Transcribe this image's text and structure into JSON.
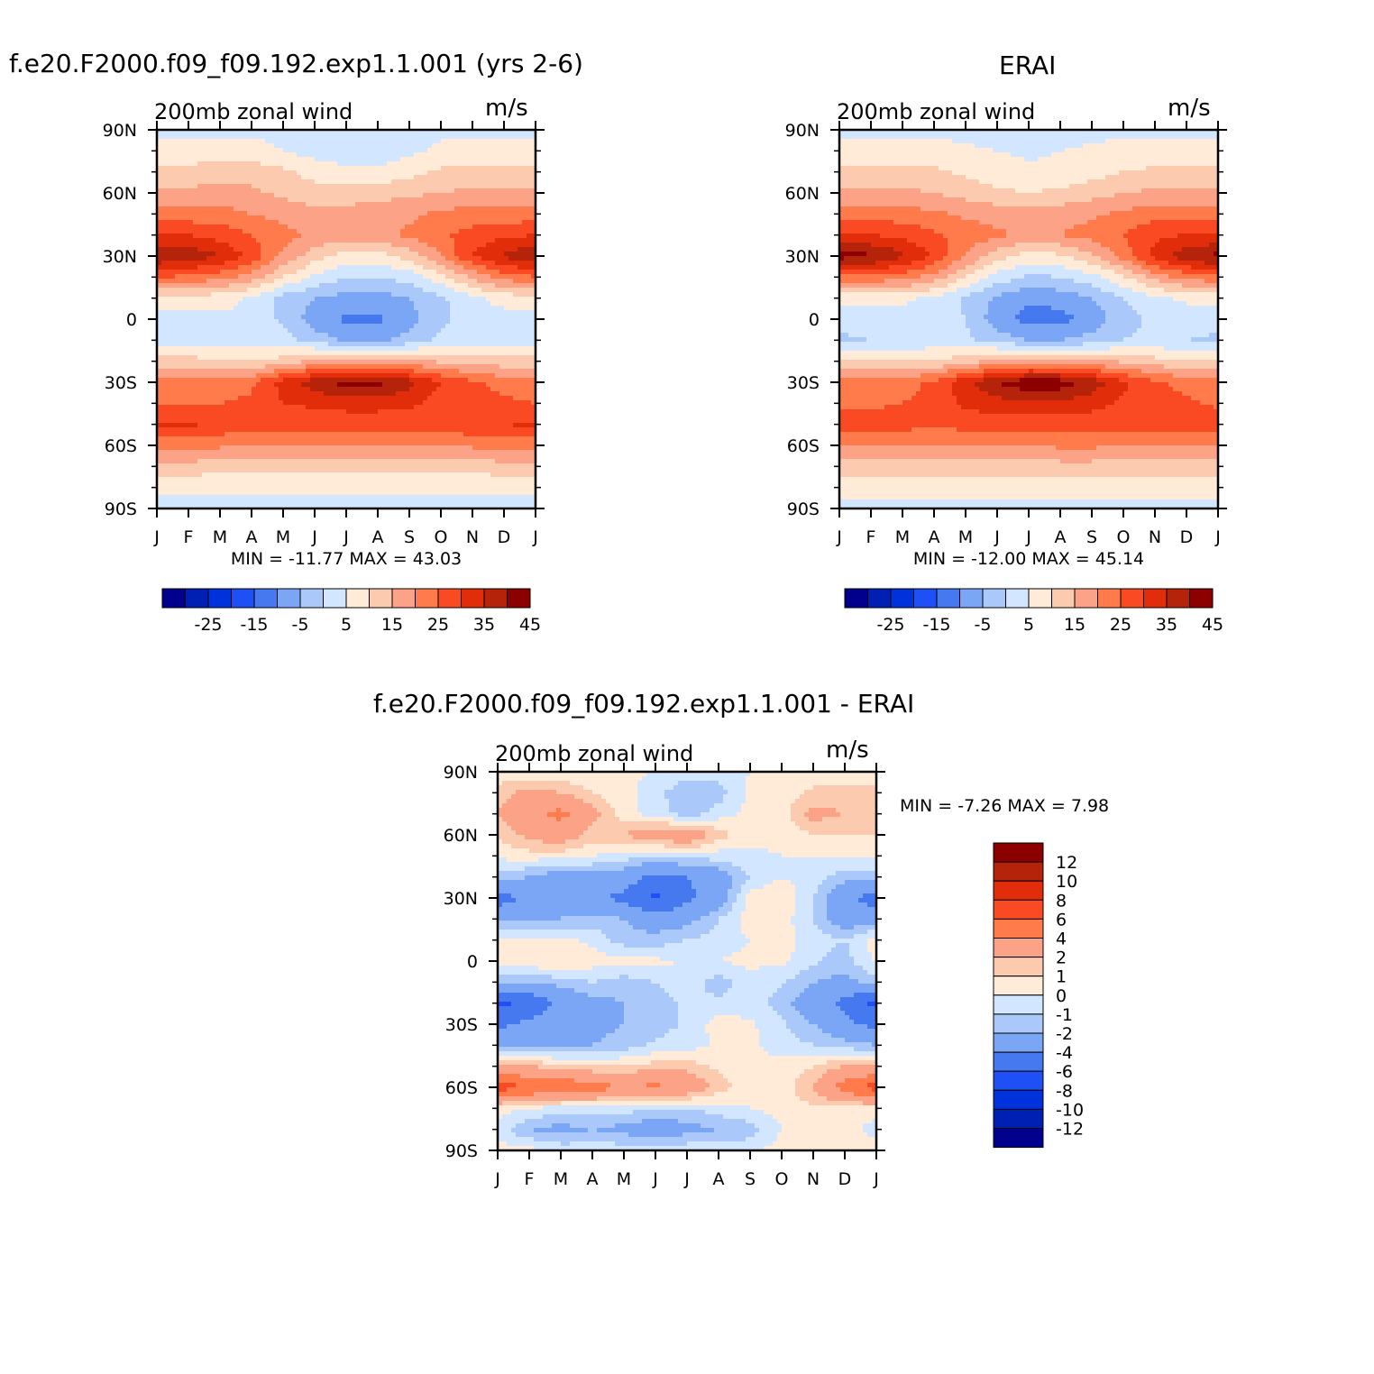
{
  "titles": {
    "top_left": "f.e20.F2000.f09_f09.192.exp1.1.001 (yrs 2-6)",
    "top_right": "ERAI",
    "bottom": "f.e20.F2000.f09_f09.192.exp1.1.001 - ERAI"
  },
  "colors": {
    "abs_palette": [
      "#00008c",
      "#0020b4",
      "#0032dc",
      "#1e50f5",
      "#4678f0",
      "#7ba5f5",
      "#aac8fa",
      "#d2e6ff",
      "#ffebd7",
      "#fccaaf",
      "#fca287",
      "#ff7b4b",
      "#f94a23",
      "#e12d0a",
      "#b4230a",
      "#8c0000"
    ],
    "diff_palette": [
      "#00008c",
      "#0020b4",
      "#0032dc",
      "#1e50f5",
      "#4678f0",
      "#7ba5f5",
      "#aac8fa",
      "#d2e6ff",
      "#ffebd7",
      "#fccaaf",
      "#fca287",
      "#ff7b4b",
      "#f94a23",
      "#e12d0a",
      "#b4230a",
      "#8c0000"
    ]
  },
  "chart_data": [
    {
      "type": "heatmap",
      "name": "model",
      "title": "f.e20.F2000.f09_f09.192.exp1.1.001 (yrs 2-6)",
      "left_label": "200mb zonal wind",
      "units": "m/s",
      "min_max": "MIN =  -11.77  MAX =    43.03",
      "x_ticks": [
        "J",
        "F",
        "M",
        "A",
        "M",
        "J",
        "J",
        "A",
        "S",
        "O",
        "N",
        "D",
        "J"
      ],
      "y_ticks": [
        "90N",
        "60N",
        "30N",
        "0",
        "30S",
        "60S",
        "90S"
      ],
      "xlim": [
        0,
        12
      ],
      "ylim": [
        -90,
        90
      ],
      "colorbar_levels": [
        -30,
        -25,
        -20,
        -15,
        -10,
        -5,
        0,
        5,
        10,
        15,
        20,
        25,
        30,
        35,
        40,
        45
      ],
      "colorbar_labels": [
        "-25",
        "-15",
        "-5",
        "5",
        "15",
        "25",
        "35",
        "45"
      ],
      "lat": [
        90,
        80,
        70,
        60,
        50,
        40,
        30,
        20,
        10,
        0,
        -10,
        -20,
        -30,
        -40,
        -50,
        -60,
        -70,
        -80,
        -90
      ],
      "months": [
        0,
        1,
        2,
        3,
        4,
        5,
        6,
        7,
        8,
        9,
        10,
        11,
        12
      ],
      "values": [
        [
          4,
          4,
          4,
          4,
          3,
          3,
          3,
          3,
          3,
          4,
          4,
          4,
          4
        ],
        [
          6,
          6,
          7,
          7,
          5,
          3,
          2,
          2,
          4,
          6,
          6,
          6,
          6
        ],
        [
          12,
          12,
          13,
          13,
          11,
          8,
          6,
          6,
          8,
          11,
          12,
          12,
          12
        ],
        [
          16,
          16,
          17,
          16,
          14,
          12,
          12,
          13,
          14,
          15,
          16,
          16,
          16
        ],
        [
          22,
          22,
          22,
          20,
          18,
          17,
          17,
          18,
          19,
          21,
          22,
          22,
          22
        ],
        [
          30,
          30,
          28,
          25,
          22,
          19,
          18,
          19,
          21,
          24,
          27,
          29,
          30
        ],
        [
          40,
          39,
          35,
          28,
          19,
          12,
          8,
          8,
          12,
          20,
          30,
          36,
          40
        ],
        [
          25,
          24,
          22,
          18,
          10,
          4,
          0,
          0,
          2,
          8,
          16,
          22,
          25
        ],
        [
          8,
          8,
          7,
          4,
          -2,
          -5,
          -7,
          -7,
          -5,
          -1,
          4,
          7,
          8
        ],
        [
          3,
          3,
          4,
          4,
          -1,
          -8,
          -11,
          -11,
          -7,
          -1,
          2,
          3,
          3
        ],
        [
          1,
          2,
          3,
          3,
          2,
          -2,
          -6,
          -6,
          -3,
          1,
          2,
          2,
          1
        ],
        [
          12,
          12,
          11,
          10,
          12,
          16,
          18,
          18,
          16,
          14,
          13,
          12,
          12
        ],
        [
          22,
          22,
          22,
          24,
          32,
          38,
          42,
          42,
          37,
          30,
          26,
          23,
          22
        ],
        [
          25,
          25,
          25,
          26,
          30,
          31,
          32,
          32,
          31,
          28,
          27,
          26,
          25
        ],
        [
          31,
          31,
          29,
          27,
          27,
          27,
          27,
          27,
          27,
          28,
          29,
          30,
          31
        ],
        [
          22,
          22,
          21,
          20,
          20,
          20,
          20,
          20,
          20,
          20,
          21,
          22,
          22
        ],
        [
          13,
          13,
          12,
          12,
          11,
          11,
          11,
          11,
          11,
          12,
          12,
          13,
          13
        ],
        [
          6,
          6,
          6,
          6,
          6,
          6,
          6,
          6,
          6,
          6,
          6,
          6,
          6
        ],
        [
          3,
          3,
          3,
          3,
          2,
          2,
          2,
          2,
          2,
          3,
          3,
          3,
          3
        ]
      ]
    },
    {
      "type": "heatmap",
      "name": "obs",
      "title": "ERAI",
      "left_label": "200mb zonal wind",
      "units": "m/s",
      "min_max": "MIN =  -12.00  MAX =    45.14",
      "x_ticks": [
        "J",
        "F",
        "M",
        "A",
        "M",
        "J",
        "J",
        "A",
        "S",
        "O",
        "N",
        "D",
        "J"
      ],
      "y_ticks": [
        "90N",
        "60N",
        "30N",
        "0",
        "30S",
        "60S",
        "90S"
      ],
      "xlim": [
        0,
        12
      ],
      "ylim": [
        -90,
        90
      ],
      "colorbar_levels": [
        -30,
        -25,
        -20,
        -15,
        -10,
        -5,
        0,
        5,
        10,
        15,
        20,
        25,
        30,
        35,
        40,
        45
      ],
      "colorbar_labels": [
        "-25",
        "-15",
        "-5",
        "5",
        "15",
        "25",
        "35",
        "45"
      ],
      "lat": [
        90,
        80,
        70,
        60,
        50,
        40,
        30,
        20,
        10,
        0,
        -10,
        -20,
        -30,
        -40,
        -50,
        -60,
        -70,
        -80,
        -90
      ],
      "months": [
        0,
        1,
        2,
        3,
        4,
        5,
        6,
        7,
        8,
        9,
        10,
        11,
        12
      ],
      "values": [
        [
          4,
          4,
          4,
          4,
          3,
          3,
          3,
          3,
          3,
          4,
          4,
          4,
          4
        ],
        [
          7,
          7,
          7,
          7,
          6,
          5,
          4,
          5,
          6,
          7,
          7,
          7,
          7
        ],
        [
          11,
          11,
          11,
          11,
          9,
          7,
          6,
          6,
          8,
          10,
          11,
          11,
          11
        ],
        [
          16,
          16,
          16,
          15,
          13,
          11,
          10,
          11,
          13,
          15,
          16,
          16,
          16
        ],
        [
          23,
          23,
          22,
          21,
          19,
          18,
          17,
          18,
          19,
          21,
          23,
          23,
          23
        ],
        [
          30,
          30,
          29,
          26,
          23,
          21,
          19,
          20,
          22,
          25,
          29,
          30,
          30
        ],
        [
          42,
          41,
          36,
          29,
          20,
          12,
          8,
          9,
          14,
          22,
          32,
          38,
          42
        ],
        [
          24,
          24,
          22,
          18,
          10,
          3,
          -1,
          0,
          3,
          9,
          17,
          22,
          24
        ],
        [
          6,
          6,
          6,
          4,
          -1,
          -6,
          -9,
          -8,
          -5,
          0,
          4,
          6,
          6
        ],
        [
          2,
          2,
          3,
          3,
          0,
          -8,
          -12,
          -12,
          -8,
          -2,
          1,
          2,
          2
        ],
        [
          -1,
          0,
          1,
          2,
          1,
          -2,
          -5,
          -5,
          -3,
          0,
          1,
          0,
          -1
        ],
        [
          10,
          10,
          10,
          10,
          13,
          16,
          18,
          18,
          16,
          14,
          12,
          11,
          10
        ],
        [
          22,
          22,
          23,
          26,
          34,
          40,
          44,
          43,
          38,
          31,
          26,
          23,
          22
        ],
        [
          24,
          24,
          25,
          27,
          31,
          33,
          34,
          34,
          32,
          29,
          27,
          26,
          24
        ],
        [
          28,
          28,
          27,
          26,
          27,
          27,
          27,
          27,
          27,
          27,
          27,
          27,
          28
        ],
        [
          20,
          20,
          20,
          20,
          20,
          20,
          20,
          21,
          21,
          20,
          20,
          20,
          20
        ],
        [
          13,
          13,
          13,
          13,
          12,
          12,
          12,
          13,
          13,
          13,
          13,
          13,
          13
        ],
        [
          7,
          7,
          7,
          7,
          7,
          7,
          7,
          7,
          7,
          7,
          7,
          7,
          7
        ],
        [
          4,
          4,
          4,
          4,
          3,
          3,
          3,
          3,
          3,
          4,
          4,
          4,
          4
        ]
      ]
    },
    {
      "type": "heatmap",
      "name": "diff",
      "title": "f.e20.F2000.f09_f09.192.exp1.1.001 - ERAI",
      "left_label": "200mb zonal wind",
      "units": "m/s",
      "min_max": "MIN =    -7.26  MAX =      7.98",
      "x_ticks": [
        "J",
        "F",
        "M",
        "A",
        "M",
        "J",
        "J",
        "A",
        "S",
        "O",
        "N",
        "D",
        "J"
      ],
      "y_ticks": [
        "90N",
        "60N",
        "30N",
        "0",
        "30S",
        "60S",
        "90S"
      ],
      "xlim": [
        0,
        12
      ],
      "ylim": [
        -90,
        90
      ],
      "colorbar_levels": [
        -12,
        -10,
        -8,
        -6,
        -4,
        -2,
        -1,
        0,
        1,
        2,
        4,
        6,
        8,
        10,
        12
      ],
      "colorbar_labels": [
        "12",
        "10",
        "8",
        "6",
        "4",
        "2",
        "1",
        "0",
        "-1",
        "-2",
        "-4",
        "-6",
        "-8",
        "-10",
        "-12"
      ],
      "lat": [
        90,
        80,
        70,
        60,
        50,
        40,
        30,
        20,
        10,
        0,
        -10,
        -20,
        -30,
        -40,
        -50,
        -60,
        -70,
        -80,
        -90
      ],
      "months": [
        0,
        1,
        2,
        3,
        4,
        5,
        6,
        7,
        8,
        9,
        10,
        11,
        12
      ],
      "values": [
        [
          0.3,
          0.3,
          0.2,
          0.2,
          0.1,
          0,
          -0.3,
          -0.5,
          0,
          0.3,
          0.5,
          0.3,
          0.3
        ],
        [
          1.5,
          2.5,
          2.0,
          1.0,
          0.3,
          -0.5,
          -2.0,
          -1.5,
          0.2,
          0.5,
          1.2,
          1.5,
          1.5
        ],
        [
          2.0,
          3.5,
          4.5,
          2.5,
          0.5,
          -0.5,
          -1.5,
          -0.5,
          0.3,
          0.5,
          2.5,
          2.0,
          2.0
        ],
        [
          1.0,
          2.5,
          3.0,
          1.5,
          2.0,
          3.0,
          3.5,
          1.5,
          0.3,
          0.3,
          1.0,
          1.0,
          1.0
        ],
        [
          0.3,
          0.5,
          0.5,
          0,
          -0.5,
          -1.0,
          -0.5,
          -0.5,
          -0.2,
          0,
          0,
          0.3,
          0.3
        ],
        [
          -1.5,
          -2.0,
          -3.0,
          -2.5,
          -3.0,
          -4.5,
          -4.0,
          -3.0,
          -1.0,
          0,
          -0.5,
          -1.5,
          -1.5
        ],
        [
          -5.0,
          -3.5,
          -2.5,
          -3.5,
          -4.5,
          -6.5,
          -4.5,
          -3.0,
          0.5,
          1.0,
          -1.0,
          -3.5,
          -5.0
        ],
        [
          -2.5,
          -2.5,
          -2.0,
          -1.5,
          -2.0,
          -3.0,
          -2.5,
          -1.0,
          0.5,
          0.5,
          -1.0,
          -3.0,
          -2.5
        ],
        [
          0.5,
          0.3,
          0.3,
          -0.3,
          -1.5,
          -1.5,
          -1.0,
          -0.5,
          0,
          0.5,
          -0.5,
          -1.0,
          0.5
        ],
        [
          0.3,
          0.8,
          1.0,
          0.5,
          0.3,
          0.2,
          0,
          0,
          0.3,
          0.2,
          -0.8,
          -1.5,
          0.3
        ],
        [
          -1.5,
          -2.0,
          -1.5,
          -1.0,
          -1.5,
          -1.0,
          -0.5,
          -1.5,
          -0.5,
          -0.8,
          -2.0,
          -2.5,
          -1.5
        ],
        [
          -6.5,
          -5.5,
          -3.5,
          -2.5,
          -2.0,
          -1.5,
          -0.8,
          -0.8,
          -0.5,
          -1.5,
          -3.0,
          -4.5,
          -6.5
        ],
        [
          -4.5,
          -3.5,
          -3.0,
          -2.5,
          -2.0,
          -1.5,
          -0.8,
          0.5,
          0.2,
          -0.8,
          -2.0,
          -3.5,
          -4.5
        ],
        [
          -2.0,
          -2.5,
          -2.5,
          -2.0,
          -1.5,
          -0.8,
          -0.5,
          0.2,
          0.2,
          -0.5,
          -1.0,
          -1.5,
          -2.0
        ],
        [
          2.0,
          2.0,
          1.5,
          1.0,
          1.0,
          1.5,
          1.5,
          0.8,
          0.3,
          0.3,
          1.0,
          2.0,
          2.0
        ],
        [
          7.0,
          6.0,
          5.5,
          5.0,
          4.0,
          4.5,
          3.5,
          1.5,
          0.5,
          0.5,
          2.0,
          5.0,
          7.0
        ],
        [
          0.5,
          0,
          -0.5,
          -0.5,
          -0.5,
          -1.0,
          -1.0,
          -0.5,
          0,
          0.5,
          0.8,
          0.8,
          0.5
        ],
        [
          -0.5,
          -2.0,
          -2.5,
          -2.0,
          -2.5,
          -3.0,
          -2.5,
          -2.0,
          -1.5,
          0,
          0.5,
          0.5,
          -0.5
        ],
        [
          0.5,
          0.3,
          -0.3,
          -0.5,
          -0.3,
          -0.3,
          -0.3,
          -0.3,
          -0.3,
          0.5,
          0.5,
          0.5,
          0.5
        ]
      ]
    }
  ]
}
